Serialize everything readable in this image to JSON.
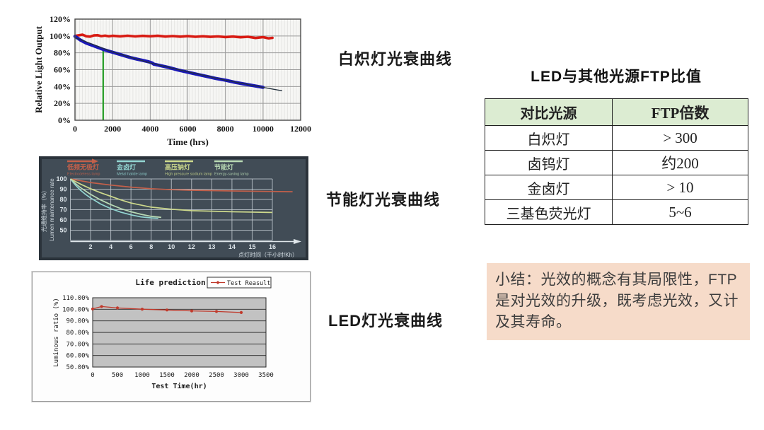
{
  "page": {
    "background": "#ffffff"
  },
  "captions": {
    "chart1": "白炽灯光衰曲线",
    "chart2": "节能灯光衰曲线",
    "chart3": "LED灯光衰曲线"
  },
  "table": {
    "title": "LED与其他光源FTP比值",
    "headers": [
      "对比光源",
      "FTP倍数"
    ],
    "rows": [
      [
        "白炽灯",
        "> 300"
      ],
      [
        "卤钨灯",
        "约200"
      ],
      [
        "金卤灯",
        "> 10"
      ],
      [
        "三基色荧光灯",
        "5~6"
      ]
    ],
    "header_bg": "#dcecd2"
  },
  "summary": {
    "text": "小结：光效的概念有其局限性，FTP是对光效的升级，既考虑光效，又计及其寿命。",
    "bg": "#f6dbc9"
  },
  "chart_data": [
    {
      "name": "白炽灯光衰曲线",
      "type": "line",
      "xlabel": "Time (hrs)",
      "ylabel": "Relative Light Output",
      "xlim": [
        0,
        12000
      ],
      "ylim": [
        0,
        120
      ],
      "x_ticks": [
        0,
        2000,
        4000,
        6000,
        8000,
        10000,
        12000
      ],
      "y_ticks": [
        0,
        20,
        40,
        60,
        80,
        100,
        120
      ],
      "y_tick_suffix": "%",
      "grid": true,
      "marker_line": {
        "x": 1500,
        "y0": 0,
        "y1": 83,
        "color": "#2fa12f"
      },
      "series": [
        {
          "name": "red-flat-curve",
          "color": "#d81a12",
          "points": [
            [
              0,
              100
            ],
            [
              200,
              100.8
            ],
            [
              400,
              101.5
            ],
            [
              600,
              99.6
            ],
            [
              800,
              99.2
            ],
            [
              1000,
              100.6
            ],
            [
              1200,
              100.9
            ],
            [
              1400,
              99.8
            ],
            [
              1600,
              100.4
            ],
            [
              1800,
              99.6
            ],
            [
              2000,
              100.2
            ],
            [
              2400,
              99.5
            ],
            [
              2800,
              100.3
            ],
            [
              3200,
              99.4
            ],
            [
              3600,
              100.1
            ],
            [
              4000,
              99.6
            ],
            [
              4400,
              100.2
            ],
            [
              4800,
              99.3
            ],
            [
              5200,
              99.9
            ],
            [
              5600,
              99.2
            ],
            [
              6000,
              99.8
            ],
            [
              6400,
              99.0
            ],
            [
              6800,
              99.6
            ],
            [
              7200,
              98.9
            ],
            [
              7600,
              99.4
            ],
            [
              8000,
              98.7
            ],
            [
              8400,
              99.3
            ],
            [
              8800,
              98.4
            ],
            [
              9200,
              99.0
            ],
            [
              9600,
              97.6
            ],
            [
              10000,
              98.6
            ],
            [
              10300,
              97.2
            ],
            [
              10500,
              97.8
            ]
          ]
        },
        {
          "name": "blue-decay-curve",
          "color": "#1b18b8",
          "points": [
            [
              0,
              99.5
            ],
            [
              300,
              95
            ],
            [
              600,
              91.5
            ],
            [
              900,
              89
            ],
            [
              1200,
              86.5
            ],
            [
              1500,
              84
            ],
            [
              1800,
              82
            ],
            [
              2100,
              80
            ],
            [
              2400,
              78
            ],
            [
              2700,
              76
            ],
            [
              3000,
              74
            ],
            [
              3300,
              72.5
            ],
            [
              3600,
              71
            ],
            [
              3900,
              69.5
            ],
            [
              4100,
              68
            ],
            [
              4200,
              66.5
            ],
            [
              4500,
              65
            ],
            [
              5000,
              62.5
            ],
            [
              5500,
              59.5
            ],
            [
              6000,
              57
            ],
            [
              6500,
              54.5
            ],
            [
              7000,
              52
            ],
            [
              7500,
              49.5
            ],
            [
              8000,
              47.5
            ],
            [
              8500,
              45
            ],
            [
              9000,
              43
            ],
            [
              9500,
              41
            ],
            [
              10000,
              39
            ]
          ]
        },
        {
          "name": "trend-line",
          "color": "#23303c",
          "points": [
            [
              0,
              98
            ],
            [
              2000,
              81
            ],
            [
              4000,
              68
            ],
            [
              6000,
              57.5
            ],
            [
              8000,
              47.5
            ],
            [
              10000,
              39
            ],
            [
              11000,
              35
            ]
          ]
        }
      ]
    },
    {
      "name": "节能灯光衰曲线",
      "type": "line",
      "xlabel": "点灯时间（千小时/Kh）",
      "ylabel_cn": "光通维持率（%）",
      "ylabel_en": "Lumen maintenance rate",
      "x_ticks": [
        2,
        4,
        6,
        8,
        10,
        12,
        13,
        14,
        15,
        16
      ],
      "y_ticks": [
        100,
        90,
        80,
        70,
        60,
        50
      ],
      "bg": "#414c56",
      "legend": [
        {
          "cn": "低频无极灯",
          "en": "Electrodeless lamp",
          "color": "#c4604a"
        },
        {
          "cn": "金卤灯",
          "en": "Metal halide lamp",
          "color": "#93d6d2"
        },
        {
          "cn": "高压钠灯",
          "en": "High pressure sodium lamp",
          "color": "#cdd98c"
        },
        {
          "cn": "节能灯",
          "en": "Energy-saving lamp",
          "color": "#b9dab4"
        }
      ],
      "series": [
        {
          "name": "低频无极灯",
          "color": "#c4604a",
          "points": [
            [
              0,
              100
            ],
            [
              2,
              96.5
            ],
            [
              4,
              94
            ],
            [
              6,
              92
            ],
            [
              8,
              90.5
            ],
            [
              10,
              89.5
            ],
            [
              12,
              89
            ],
            [
              14,
              88.3
            ],
            [
              16,
              87.8
            ],
            [
              17,
              87.5
            ]
          ]
        },
        {
          "name": "金卤灯",
          "color": "#93d6d2",
          "points": [
            [
              0,
              100
            ],
            [
              0.5,
              94
            ],
            [
              1,
              89
            ],
            [
              1.5,
              85
            ],
            [
              2,
              81.5
            ],
            [
              3,
              75.5
            ],
            [
              4,
              71
            ],
            [
              5,
              67.5
            ],
            [
              6,
              65
            ],
            [
              7,
              63
            ],
            [
              8,
              62
            ],
            [
              8.7,
              61.5
            ]
          ]
        },
        {
          "name": "高压钠灯",
          "color": "#cdd98c",
          "points": [
            [
              0,
              100
            ],
            [
              1,
              95
            ],
            [
              2,
              90.5
            ],
            [
              3,
              86.5
            ],
            [
              4,
              83
            ],
            [
              5,
              79.5
            ],
            [
              6,
              76.5
            ],
            [
              8,
              72.5
            ],
            [
              10,
              70.5
            ],
            [
              12,
              69
            ],
            [
              14,
              68
            ],
            [
              16,
              67.3
            ]
          ]
        },
        {
          "name": "节能灯",
          "color": "#b9dab4",
          "points": [
            [
              0,
              100
            ],
            [
              0.5,
              95.5
            ],
            [
              1,
              91.5
            ],
            [
              2,
              85
            ],
            [
              3,
              79.5
            ],
            [
              4,
              75
            ],
            [
              5,
              71
            ],
            [
              6,
              68
            ],
            [
              7,
              65.5
            ],
            [
              8,
              63.5
            ],
            [
              9,
              62.5
            ]
          ]
        }
      ]
    },
    {
      "name": "LED灯光衰曲线",
      "type": "line",
      "title": "Life prediction",
      "xlabel": "Test Time(hr)",
      "ylabel": "Luminous ratio (%)",
      "xlim": [
        0,
        3500
      ],
      "x_ticks": [
        0,
        500,
        1000,
        1500,
        2000,
        2500,
        3000,
        3500
      ],
      "y_ticks": [
        "110.00%",
        "100.00%",
        "90.00%",
        "80.00%",
        "70.00%",
        "60.00%",
        "50.00%"
      ],
      "plot_bg": "#c2c2c2",
      "legend": [
        "Test Reasult"
      ],
      "series": [
        {
          "name": "Test Reasult",
          "color": "#c0392b",
          "points": [
            [
              0,
              100.3
            ],
            [
              180,
              102.4
            ],
            [
              500,
              101.2
            ],
            [
              1000,
              100.1
            ],
            [
              1500,
              99.4
            ],
            [
              2000,
              98.6
            ],
            [
              2500,
              98.1
            ],
            [
              3000,
              97.2
            ]
          ]
        }
      ]
    }
  ]
}
